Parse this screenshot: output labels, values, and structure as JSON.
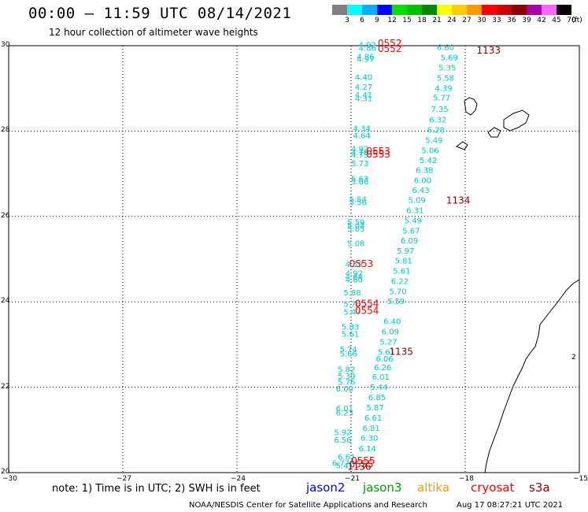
{
  "header": {
    "title": "00:00 – 11:59 UTC 08/14/2021",
    "subtitle": "12 hour collection of altimeter wave heights"
  },
  "legend": {
    "unit": "(ft)",
    "levels": [
      {
        "label": "3",
        "color": "#7f7f7f"
      },
      {
        "label": "6",
        "color": "#00ffff"
      },
      {
        "label": "9",
        "color": "#00b0ff"
      },
      {
        "label": "12",
        "color": "#0000ff"
      },
      {
        "label": "15",
        "color": "#00e000"
      },
      {
        "label": "18",
        "color": "#00c000"
      },
      {
        "label": "21",
        "color": "#008800"
      },
      {
        "label": "24",
        "color": "#ffff00"
      },
      {
        "label": "27",
        "color": "#ffcc00"
      },
      {
        "label": "30",
        "color": "#ff9900"
      },
      {
        "label": "33",
        "color": "#ff0000"
      },
      {
        "label": "36",
        "color": "#cc0000"
      },
      {
        "label": "39",
        "color": "#880000"
      },
      {
        "label": "42",
        "color": "#aa00aa"
      },
      {
        "label": "45",
        "color": "#ff66ff"
      },
      {
        "label": "70",
        "color": "#000000"
      }
    ]
  },
  "axes": {
    "x_ticks": [
      "−30",
      "−27",
      "−24",
      "−21",
      "−18",
      "−15"
    ],
    "y_ticks": [
      "30",
      "28",
      "26",
      "24",
      "22",
      "20"
    ]
  },
  "chart_data": {
    "type": "scatter",
    "xlim": [
      -30,
      -15
    ],
    "ylim": [
      20,
      30
    ],
    "grid": true,
    "wave_heights_ft": [
      {
        "v": "4.92",
        "lon": -20.8,
        "lat": 29.95
      },
      {
        "v": "4.86",
        "lon": -20.8,
        "lat": 29.88
      },
      {
        "v": "4.86",
        "lon": -20.85,
        "lat": 29.68
      },
      {
        "v": "4.97",
        "lon": -20.85,
        "lat": 29.62
      },
      {
        "v": "4.40",
        "lon": -20.9,
        "lat": 29.2
      },
      {
        "v": "4.27",
        "lon": -20.9,
        "lat": 28.97
      },
      {
        "v": "4.41",
        "lon": -20.9,
        "lat": 28.78
      },
      {
        "v": "4.31",
        "lon": -20.9,
        "lat": 28.7
      },
      {
        "v": "4.34",
        "lon": -20.95,
        "lat": 28.0
      },
      {
        "v": "4.64",
        "lon": -20.95,
        "lat": 27.83
      },
      {
        "v": "4.92",
        "lon": -21.0,
        "lat": 27.52
      },
      {
        "v": "4.78",
        "lon": -21.0,
        "lat": 27.44
      },
      {
        "v": "4.75",
        "lon": -21.0,
        "lat": 27.38
      },
      {
        "v": "5.73",
        "lon": -21.0,
        "lat": 27.18
      },
      {
        "v": "5.63",
        "lon": -21.0,
        "lat": 26.82
      },
      {
        "v": "5.66",
        "lon": -21.0,
        "lat": 26.75
      },
      {
        "v": "5.54",
        "lon": -21.05,
        "lat": 26.34
      },
      {
        "v": "5.56",
        "lon": -21.05,
        "lat": 26.26
      },
      {
        "v": "5.59",
        "lon": -21.1,
        "lat": 25.8
      },
      {
        "v": "5.03",
        "lon": -21.1,
        "lat": 25.72
      },
      {
        "v": "5.05",
        "lon": -21.1,
        "lat": 25.65
      },
      {
        "v": "5.08",
        "lon": -21.1,
        "lat": 25.3
      },
      {
        "v": "4.59",
        "lon": -21.15,
        "lat": 24.82
      },
      {
        "v": "4.92",
        "lon": -21.15,
        "lat": 24.6
      },
      {
        "v": "4.64",
        "lon": -21.15,
        "lat": 24.52
      },
      {
        "v": "4.60",
        "lon": -21.15,
        "lat": 24.46
      },
      {
        "v": "5.88",
        "lon": -21.2,
        "lat": 24.15
      },
      {
        "v": "5.76",
        "lon": -21.2,
        "lat": 23.88
      },
      {
        "v": "5.47",
        "lon": -21.2,
        "lat": 23.7
      },
      {
        "v": "5.83",
        "lon": -21.25,
        "lat": 23.35
      },
      {
        "v": "5.61",
        "lon": -21.25,
        "lat": 23.18
      },
      {
        "v": "5.74",
        "lon": -21.3,
        "lat": 22.82
      },
      {
        "v": "5.66",
        "lon": -21.3,
        "lat": 22.72
      },
      {
        "v": "5.82",
        "lon": -21.35,
        "lat": 22.35
      },
      {
        "v": "5.39",
        "lon": -21.35,
        "lat": 22.2
      },
      {
        "v": "5.76",
        "lon": -21.35,
        "lat": 22.06
      },
      {
        "v": "6.00",
        "lon": -21.4,
        "lat": 21.9
      },
      {
        "v": "6.01",
        "lon": -21.4,
        "lat": 21.44
      },
      {
        "v": "6.23",
        "lon": -21.4,
        "lat": 21.34
      },
      {
        "v": "5.92",
        "lon": -21.45,
        "lat": 20.88
      },
      {
        "v": "6.56",
        "lon": -21.45,
        "lat": 20.7
      },
      {
        "v": "6.61",
        "lon": -21.35,
        "lat": 20.3
      },
      {
        "v": "6.77",
        "lon": -21.5,
        "lat": 20.16
      },
      {
        "v": "5.47",
        "lon": -21.4,
        "lat": 20.1
      },
      {
        "v": "6.60",
        "lon": -18.75,
        "lat": 29.9
      },
      {
        "v": "5.69",
        "lon": -18.65,
        "lat": 29.66
      },
      {
        "v": "5.35",
        "lon": -18.7,
        "lat": 29.42
      },
      {
        "v": "5.58",
        "lon": -18.75,
        "lat": 29.18
      },
      {
        "v": "4.39",
        "lon": -18.8,
        "lat": 28.94
      },
      {
        "v": "5.77",
        "lon": -18.85,
        "lat": 28.72
      },
      {
        "v": "7.35",
        "lon": -18.9,
        "lat": 28.45
      },
      {
        "v": "6.32",
        "lon": -18.95,
        "lat": 28.2
      },
      {
        "v": "6.28",
        "lon": -19.0,
        "lat": 27.96
      },
      {
        "v": "5.49",
        "lon": -19.05,
        "lat": 27.72
      },
      {
        "v": "5.06",
        "lon": -19.15,
        "lat": 27.48
      },
      {
        "v": "5.42",
        "lon": -19.2,
        "lat": 27.25
      },
      {
        "v": "6.38",
        "lon": -19.3,
        "lat": 27.02
      },
      {
        "v": "6.00",
        "lon": -19.35,
        "lat": 26.78
      },
      {
        "v": "6.43",
        "lon": -19.4,
        "lat": 26.55
      },
      {
        "v": "5.09",
        "lon": -19.5,
        "lat": 26.32
      },
      {
        "v": "6.31",
        "lon": -19.55,
        "lat": 26.08
      },
      {
        "v": "5.49",
        "lon": -19.6,
        "lat": 25.84
      },
      {
        "v": "5.67",
        "lon": -19.65,
        "lat": 25.6
      },
      {
        "v": "6.09",
        "lon": -19.7,
        "lat": 25.37
      },
      {
        "v": "5.97",
        "lon": -19.8,
        "lat": 25.13
      },
      {
        "v": "5.81",
        "lon": -19.85,
        "lat": 24.9
      },
      {
        "v": "5.61",
        "lon": -19.9,
        "lat": 24.66
      },
      {
        "v": "6.22",
        "lon": -19.95,
        "lat": 24.42
      },
      {
        "v": "5.70",
        "lon": -20.0,
        "lat": 24.18
      },
      {
        "v": "5.59",
        "lon": -20.05,
        "lat": 23.95
      },
      {
        "v": "6.40",
        "lon": -20.15,
        "lat": 23.48
      },
      {
        "v": "6.09",
        "lon": -20.2,
        "lat": 23.24
      },
      {
        "v": "5.27",
        "lon": -20.25,
        "lat": 23.0
      },
      {
        "v": "5.61",
        "lon": -20.3,
        "lat": 22.76
      },
      {
        "v": "6.06",
        "lon": -20.35,
        "lat": 22.6
      },
      {
        "v": "6.26",
        "lon": -20.4,
        "lat": 22.4
      },
      {
        "v": "6.01",
        "lon": -20.45,
        "lat": 22.18
      },
      {
        "v": "5.44",
        "lon": -20.5,
        "lat": 21.94
      },
      {
        "v": "6.85",
        "lon": -20.55,
        "lat": 21.7
      },
      {
        "v": "5.87",
        "lon": -20.6,
        "lat": 21.46
      },
      {
        "v": "6.61",
        "lon": -20.65,
        "lat": 21.22
      },
      {
        "v": "6.81",
        "lon": -20.7,
        "lat": 20.98
      },
      {
        "v": "6.30",
        "lon": -20.75,
        "lat": 20.75
      },
      {
        "v": "6.14",
        "lon": -20.8,
        "lat": 20.5
      }
    ],
    "time_labels": [
      {
        "t": "0552",
        "lon": -20.3,
        "lat": 29.98,
        "c": "#ff0000"
      },
      {
        "t": "0552",
        "lon": -20.3,
        "lat": 29.85,
        "c": "#ff0000"
      },
      {
        "t": "1133",
        "lon": -17.7,
        "lat": 29.82,
        "c": "#880000"
      },
      {
        "t": "0553",
        "lon": -20.6,
        "lat": 27.45,
        "c": "#ff0000"
      },
      {
        "t": "0553",
        "lon": -20.6,
        "lat": 27.38,
        "c": "#ff0000"
      },
      {
        "t": "1134",
        "lon": -18.5,
        "lat": 26.3,
        "c": "#880000"
      },
      {
        "t": "0553",
        "lon": -21.05,
        "lat": 24.82,
        "c": "#ff0000"
      },
      {
        "t": "0554",
        "lon": -20.9,
        "lat": 23.88,
        "c": "#ff0000"
      },
      {
        "t": "0554",
        "lon": -20.9,
        "lat": 23.72,
        "c": "#ff0000"
      },
      {
        "t": "1135",
        "lon": -20.0,
        "lat": 22.76,
        "c": "#880000"
      },
      {
        "t": "0555",
        "lon": -21.0,
        "lat": 20.2,
        "c": "#ff0000"
      },
      {
        "t": "0555",
        "lon": -21.05,
        "lat": 20.12,
        "c": "#ff0000"
      },
      {
        "t": "1136",
        "lon": -21.1,
        "lat": 20.06,
        "c": "#880000"
      }
    ]
  },
  "map": {
    "coastline_color": "#000000",
    "value_color": "#00cccc",
    "right_edge_label": "2"
  },
  "footer": {
    "note": "note:  1) Time is in UTC; 2) SWH is in feet",
    "satellites": [
      {
        "name": "jason2",
        "color": "#0000ff"
      },
      {
        "name": "jason3",
        "color": "#009900"
      },
      {
        "name": "altika",
        "color": "#ff9900"
      },
      {
        "name": "cryosat",
        "color": "#ff0000"
      },
      {
        "name": "s3a",
        "color": "#880000"
      }
    ],
    "credit": "NOAA/NESDIS Center for Satellite Applications and Research",
    "timestamp": "Aug 17 08:27:21 UTC 2021"
  }
}
